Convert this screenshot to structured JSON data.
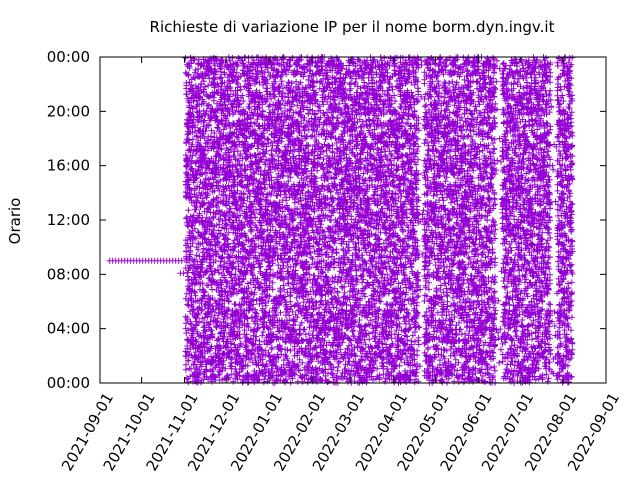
{
  "chart_data": {
    "type": "scatter",
    "title": "Richieste di variazione IP per il nome borm.dyn.ingv.it",
    "xlabel": "",
    "ylabel": "Orario",
    "grid": false,
    "legend": "none",
    "marker": "+",
    "color": "#9400d3",
    "x_ticks": [
      "2021-09-01",
      "2021-10-01",
      "2021-11-01",
      "2021-12-01",
      "2022-01-01",
      "2022-02-01",
      "2022-03-01",
      "2022-04-01",
      "2022-05-01",
      "2022-06-01",
      "2022-07-01",
      "2022-08-01",
      "2022-09-01"
    ],
    "y_ticks": [
      "00:00",
      "04:00",
      "08:00",
      "12:00",
      "16:00",
      "20:00",
      "00:00"
    ],
    "xlim": [
      "2021-09-01",
      "2022-09-01"
    ],
    "ylim": [
      "00:00",
      "24:00"
    ],
    "series": [
      {
        "x_range": [
          "2021-09-08",
          "2021-10-30"
        ],
        "y": "09:00"
      },
      {
        "x_range": [
          "2021-10-29",
          "2021-11-02"
        ],
        "y": "08:05"
      },
      {
        "x_range": [
          "2021-11-02",
          "2022-08-08"
        ],
        "y_range": [
          "00:00",
          "24:00"
        ],
        "density": "dense",
        "sparse_periods": [
          [
            "2022-04-19",
            "2022-04-23"
          ],
          [
            "2022-06-13",
            "2022-06-18"
          ],
          [
            "2022-07-23",
            "2022-07-28"
          ]
        ]
      }
    ]
  }
}
